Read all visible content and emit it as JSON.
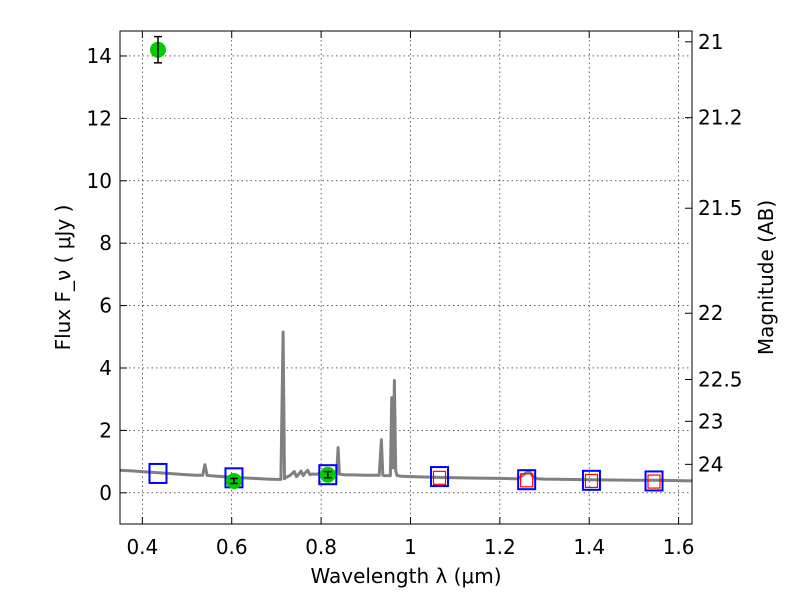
{
  "chart_data": {
    "type": "scatter",
    "xlabel": "Wavelength  λ (μm)",
    "ylabel": "Flux  F_ν  ( μJy )",
    "ylabel_right": "Magnitude (AB)",
    "xlim": [
      0.35,
      1.63
    ],
    "ylim": [
      -1,
      14.8
    ],
    "x_ticks": [
      0.4,
      0.6,
      0.8,
      1.0,
      1.2,
      1.4,
      1.6
    ],
    "x_tick_labels": [
      "0.4",
      "0.6",
      "0.8",
      "1",
      "1.2",
      "1.4",
      "1.6"
    ],
    "y_ticks": [
      0,
      2,
      4,
      6,
      8,
      10,
      12,
      14
    ],
    "y_tick_labels": [
      "0",
      "2",
      "4",
      "6",
      "8",
      "10",
      "12",
      "14"
    ],
    "right_ticks": [
      {
        "label": "21",
        "mag": 21.0
      },
      {
        "label": "21.2",
        "mag": 21.2
      },
      {
        "label": "21.5",
        "mag": 21.5
      },
      {
        "label": "22",
        "mag": 22.0
      },
      {
        "label": "22.5",
        "mag": 22.5
      },
      {
        "label": "23",
        "mag": 23.0
      },
      {
        "label": "24",
        "mag": 24.0
      }
    ],
    "grid": true,
    "colors": {
      "spectrum": "#808080",
      "observed": "#00cc00",
      "model_box": "#0000ff",
      "filter_box": "#ff0000",
      "errorbar": "#000000"
    },
    "series": [
      {
        "kind": "line",
        "x": [
          0.35,
          0.38,
          0.4,
          0.42,
          0.45,
          0.48,
          0.5,
          0.52,
          0.535,
          0.54,
          0.545,
          0.55,
          0.58,
          0.6,
          0.62,
          0.65,
          0.68,
          0.7,
          0.71,
          0.715,
          0.718,
          0.722,
          0.73,
          0.74,
          0.745,
          0.75,
          0.755,
          0.76,
          0.765,
          0.77,
          0.775,
          0.78,
          0.79,
          0.8,
          0.81,
          0.82,
          0.83,
          0.835,
          0.838,
          0.841,
          0.85,
          0.88,
          0.9,
          0.93,
          0.935,
          0.938,
          0.942,
          0.95,
          0.955,
          0.958,
          0.961,
          0.964,
          0.967,
          0.97,
          0.975,
          0.98,
          1.0,
          1.05,
          1.1,
          1.15,
          1.2,
          1.24,
          1.255,
          1.265,
          1.275,
          1.285,
          1.3,
          1.35,
          1.4,
          1.45,
          1.5,
          1.55,
          1.6,
          1.63
        ],
        "y": [
          0.72,
          0.7,
          0.68,
          0.66,
          0.63,
          0.6,
          0.58,
          0.56,
          0.56,
          0.9,
          0.56,
          0.55,
          0.52,
          0.5,
          0.48,
          0.46,
          0.44,
          0.43,
          0.43,
          5.15,
          0.45,
          0.5,
          0.55,
          0.68,
          0.52,
          0.6,
          0.7,
          0.55,
          0.65,
          0.72,
          0.58,
          0.6,
          0.6,
          0.62,
          0.64,
          0.62,
          0.6,
          0.6,
          1.45,
          0.6,
          0.58,
          0.57,
          0.56,
          0.56,
          1.7,
          0.56,
          0.55,
          0.55,
          0.55,
          3.05,
          0.8,
          3.6,
          0.7,
          0.55,
          0.54,
          0.53,
          0.52,
          0.5,
          0.48,
          0.47,
          0.46,
          0.45,
          0.6,
          0.7,
          0.5,
          0.45,
          0.44,
          0.43,
          0.42,
          0.41,
          0.4,
          0.4,
          0.39,
          0.38
        ]
      },
      {
        "kind": "model_boxes",
        "x": [
          0.435,
          0.605,
          0.815,
          1.065,
          1.26,
          1.405,
          1.545
        ],
        "y": [
          0.62,
          0.48,
          0.58,
          0.52,
          0.42,
          0.4,
          0.38
        ]
      },
      {
        "kind": "filter_boxes",
        "x": [
          1.065,
          1.26,
          1.405,
          1.545
        ],
        "y": [
          0.48,
          0.4,
          0.38,
          0.36
        ]
      },
      {
        "kind": "observed_points",
        "x": [
          0.435,
          0.605,
          0.815
        ],
        "y": [
          14.2,
          0.38,
          0.58
        ],
        "yerr": [
          0.42,
          0.08,
          0.1
        ]
      }
    ]
  }
}
